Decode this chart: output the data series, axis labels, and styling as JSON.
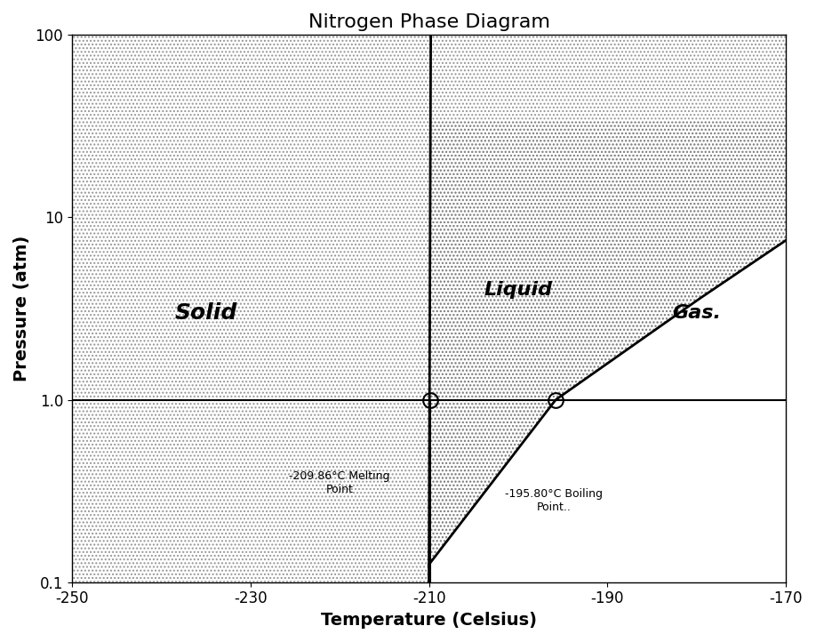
{
  "title": "Nitrogen Phase Diagram",
  "xlabel": "Temperature (Celsius)",
  "ylabel": "Pressure (atm)",
  "xlim": [
    -250,
    -170
  ],
  "ylim": [
    0.1,
    100
  ],
  "melting_point_T": -209.86,
  "melting_point_P": 1.0,
  "boiling_point_T": -195.8,
  "boiling_point_P": 1.0,
  "label_solid": "Solid",
  "label_liquid": "Liquid",
  "label_gas": "Gas.",
  "label_melting": "-209.86°C Melting\nPoint",
  "label_boiling": "-195.80°C Boiling\nPoint..",
  "background_color": "#ffffff",
  "line_color": "#000000",
  "hatch_dot": "..",
  "title_fontsize": 16,
  "label_fontsize": 14,
  "region_label_fontsize": 16
}
